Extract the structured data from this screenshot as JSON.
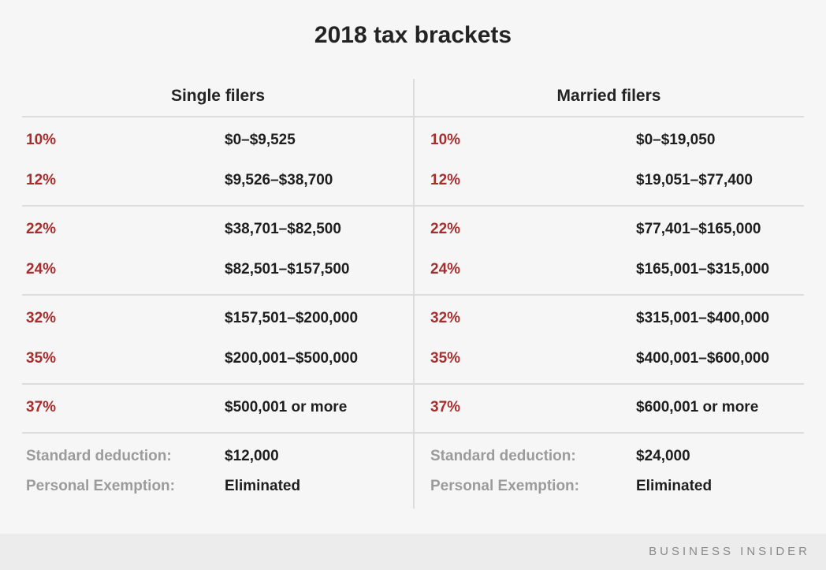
{
  "chart_data": {
    "type": "table",
    "title": "2018 tax brackets",
    "series": [
      {
        "name": "Single filers",
        "brackets": [
          {
            "rate": "10%",
            "range": "$0–$9,525"
          },
          {
            "rate": "12%",
            "range": "$9,526–$38,700"
          },
          {
            "rate": "22%",
            "range": "$38,701–$82,500"
          },
          {
            "rate": "24%",
            "range": "$82,501–$157,500"
          },
          {
            "rate": "32%",
            "range": "$157,501–$200,000"
          },
          {
            "rate": "35%",
            "range": "$200,001–$500,000"
          },
          {
            "rate": "37%",
            "range": "$500,001 or more"
          }
        ],
        "footer": [
          {
            "label": "Standard deduction:",
            "value": "$12,000"
          },
          {
            "label": "Personal Exemption:",
            "value": "Eliminated"
          }
        ]
      },
      {
        "name": "Married filers",
        "brackets": [
          {
            "rate": "10%",
            "range": "$0–$19,050"
          },
          {
            "rate": "12%",
            "range": "$19,051–$77,400"
          },
          {
            "rate": "22%",
            "range": "$77,401–$165,000"
          },
          {
            "rate": "24%",
            "range": "$165,001–$315,000"
          },
          {
            "rate": "32%",
            "range": "$315,001–$400,000"
          },
          {
            "rate": "35%",
            "range": "$400,001–$600,000"
          },
          {
            "rate": "37%",
            "range": "$600,001 or more"
          }
        ],
        "footer": [
          {
            "label": "Standard deduction:",
            "value": "$24,000"
          },
          {
            "label": "Personal Exemption:",
            "value": "Eliminated"
          }
        ]
      }
    ],
    "layout": {
      "grid": "row-groups of two brackets separated by light rules",
      "legend_position": "none"
    }
  },
  "branding": {
    "source_label": "BUSINESS INSIDER"
  },
  "colors": {
    "accent_red": "#a82e2e",
    "text_dark": "#1e1e1e",
    "label_gray": "#9b9b9b",
    "line_gray": "#dcdcdc",
    "background": "#f6f6f6",
    "footer_band": "#ececec",
    "footer_text": "#8a8a8a"
  }
}
